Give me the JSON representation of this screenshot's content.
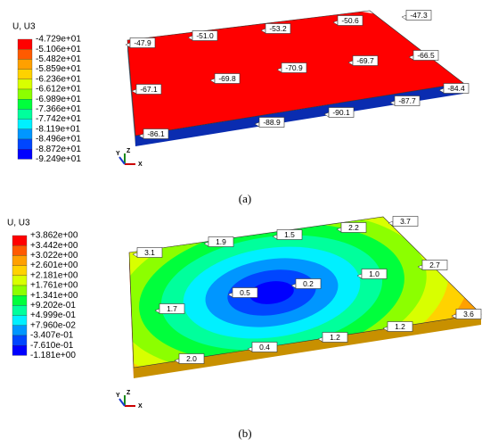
{
  "panels": [
    {
      "legend": {
        "title": "U, U3",
        "labels": [
          "-4.729e+01",
          "-5.106e+01",
          "-5.482e+01",
          "-5.859e+01",
          "-6.236e+01",
          "-6.612e+01",
          "-6.989e+01",
          "-7.366e+01",
          "-7.742e+01",
          "-8.119e+01",
          "-8.496e+01",
          "-8.872e+01",
          "-9.249e+01"
        ]
      },
      "probes": [
        "-47.3",
        "-50.6",
        "-53.2",
        "-51.0",
        "-47.9",
        "-66.5",
        "-69.7",
        "-70.9",
        "-69.8",
        "-67.1",
        "-84.4",
        "-87.7",
        "-90.1",
        "-88.9",
        "-86.1"
      ],
      "triad": [
        "Y",
        "Z",
        "X"
      ],
      "caption": "(a)"
    },
    {
      "legend": {
        "title": "U, U3",
        "labels": [
          "+3.862e+00",
          "+3.442e+00",
          "+3.022e+00",
          "+2.601e+00",
          "+2.181e+00",
          "+1.761e+00",
          "+1.341e+00",
          "+9.202e-01",
          "+4.999e-01",
          "+7.960e-02",
          "-3.407e-01",
          "-7.610e-01",
          "-1.181e+00"
        ]
      },
      "probes": [
        "3.7",
        "2.2",
        "1.5",
        "1.9",
        "3.1",
        "2.7",
        "1.0",
        "0.2",
        "0.5",
        "1.7",
        "3.6",
        "1.2",
        "1.2",
        "0.4",
        "2.0"
      ],
      "triad": [
        "Y",
        "Z",
        "X"
      ],
      "caption": "(b)"
    }
  ]
}
